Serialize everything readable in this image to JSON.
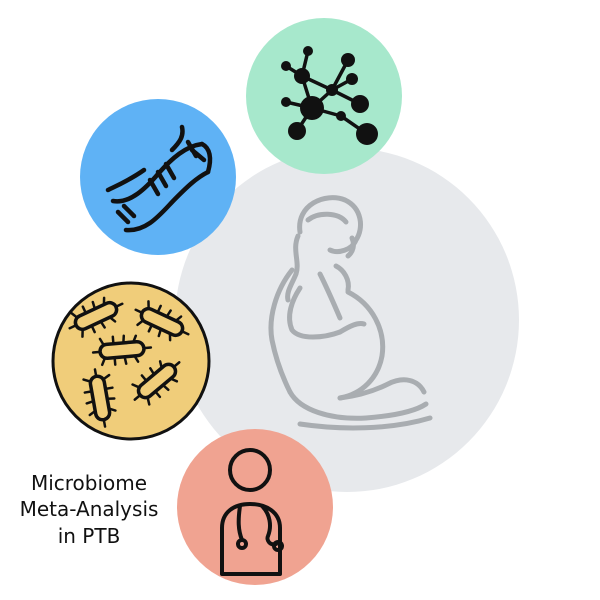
{
  "caption": {
    "lines": [
      "Microbiome",
      "Meta-Analysis",
      "in PTB"
    ]
  },
  "icons": {
    "center": "pregnant-woman-icon",
    "network": "network-graph-icon",
    "dna": "dna-helix-icon",
    "bacteria": "bacteria-icon",
    "clinician": "clinician-stethoscope-icon"
  },
  "colors": {
    "center_circle": "#e7e9ec",
    "center_figure": "#a9adb1",
    "network_circle": "#a7e8cc",
    "dna_circle": "#5fb2f5",
    "bacteria_circle": "#f0cd7a",
    "clinician_circle": "#f0a391",
    "icon_ink": "#111111"
  }
}
